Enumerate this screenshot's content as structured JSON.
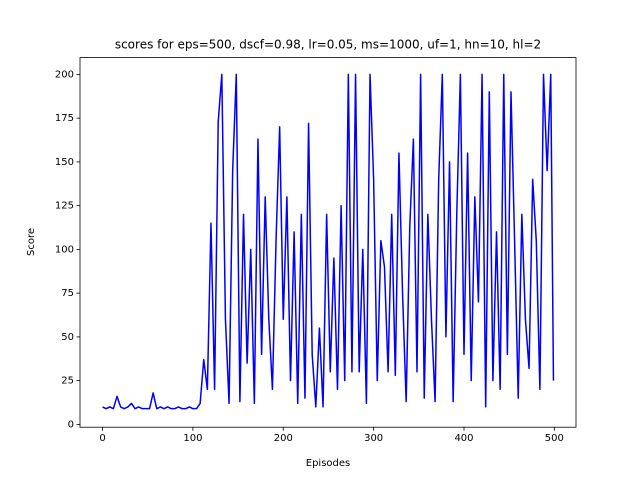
{
  "chart_data": {
    "type": "line",
    "title": "scores for eps=500, dscf=0.98, lr=0.05, ms=1000, uf=1, hn=10, hl=2",
    "x_label": "Episodes",
    "y_label": "Score",
    "x": [
      0,
      4,
      8,
      12,
      16,
      20,
      24,
      28,
      32,
      36,
      40,
      44,
      48,
      52,
      56,
      60,
      64,
      68,
      72,
      76,
      80,
      84,
      88,
      92,
      96,
      100,
      104,
      108,
      112,
      116,
      120,
      124,
      128,
      132,
      136,
      140,
      144,
      148,
      152,
      156,
      160,
      164,
      168,
      172,
      176,
      180,
      184,
      188,
      192,
      196,
      200,
      204,
      208,
      212,
      216,
      220,
      224,
      228,
      232,
      236,
      240,
      244,
      248,
      252,
      256,
      260,
      264,
      268,
      272,
      276,
      280,
      284,
      288,
      292,
      296,
      300,
      304,
      308,
      312,
      316,
      320,
      324,
      328,
      332,
      336,
      340,
      344,
      348,
      352,
      356,
      360,
      364,
      368,
      372,
      376,
      380,
      384,
      388,
      392,
      396,
      400,
      404,
      408,
      412,
      416,
      420,
      424,
      428,
      432,
      436,
      440,
      444,
      448,
      452,
      456,
      460,
      464,
      468,
      472,
      476,
      480,
      484,
      488,
      492,
      496,
      499
    ],
    "series": [
      {
        "name": "score",
        "color": "#0000ff",
        "values": [
          10,
          9,
          10,
          9,
          16,
          10,
          9,
          10,
          12,
          9,
          10,
          9,
          9,
          9,
          18,
          9,
          10,
          9,
          10,
          9,
          9,
          10,
          9,
          9,
          10,
          9,
          9,
          12,
          37,
          20,
          115,
          20,
          173,
          200,
          60,
          12,
          145,
          200,
          13,
          120,
          35,
          100,
          12,
          163,
          40,
          130,
          60,
          20,
          105,
          170,
          60,
          130,
          25,
          110,
          12,
          120,
          15,
          172,
          40,
          10,
          55,
          10,
          120,
          30,
          95,
          20,
          125,
          25,
          200,
          30,
          200,
          30,
          100,
          12,
          200,
          140,
          25,
          105,
          90,
          30,
          120,
          28,
          155,
          75,
          13,
          113,
          163,
          30,
          200,
          15,
          120,
          60,
          13,
          140,
          200,
          50,
          150,
          13,
          120,
          200,
          40,
          155,
          25,
          130,
          70,
          200,
          10,
          190,
          25,
          110,
          20,
          200,
          40,
          190,
          105,
          15,
          120,
          60,
          32,
          140,
          105,
          20,
          200,
          145,
          200,
          25
        ]
      }
    ],
    "xlim": [
      -24.95,
      523.95
    ],
    "xticks": [
      0,
      100,
      200,
      300,
      400,
      500
    ],
    "ylim": [
      -1.6,
      209.6
    ],
    "yticks": [
      0,
      25,
      50,
      75,
      100,
      125,
      150,
      175,
      200
    ]
  }
}
